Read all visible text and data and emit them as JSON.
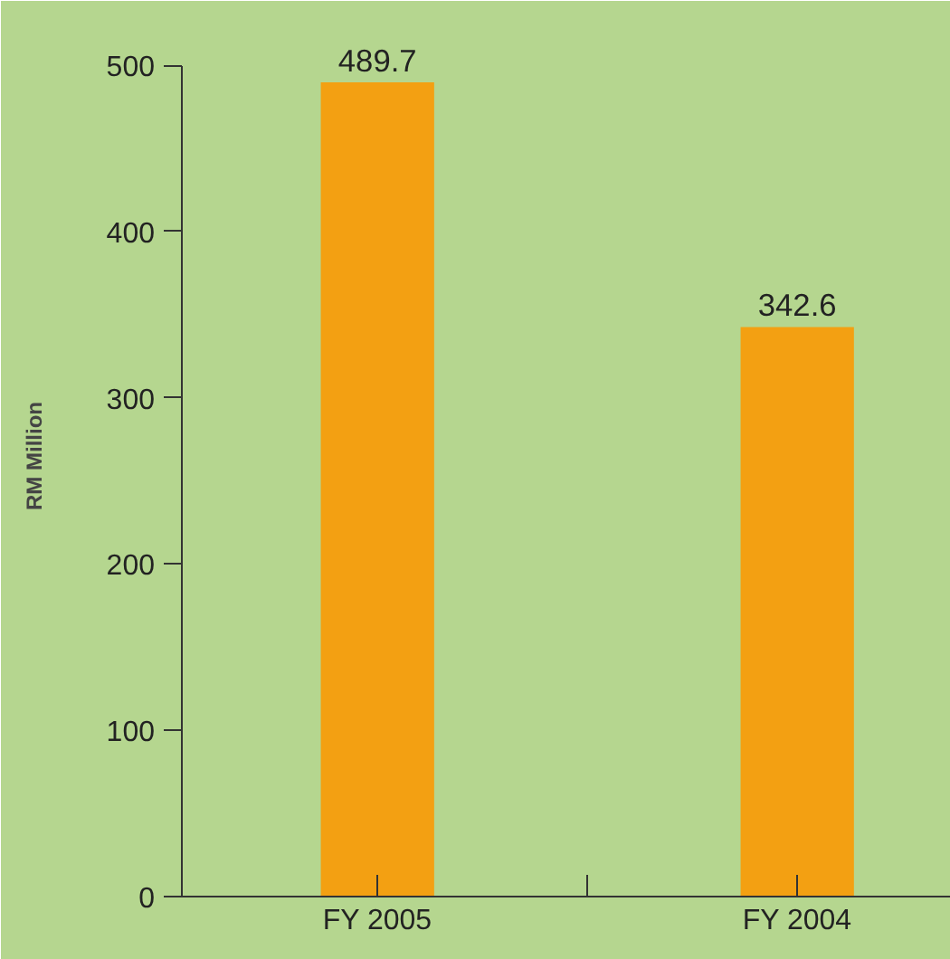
{
  "chart_data": {
    "type": "bar",
    "ylabel": "RM Million",
    "categories": [
      "FY 2005",
      "FY 2004"
    ],
    "values": [
      489.7,
      342.6
    ],
    "color": "#f3a012",
    "ylim": [
      0,
      500
    ],
    "yticks": [
      0,
      100,
      200,
      300,
      400,
      500
    ],
    "grid": false,
    "data_labels": true
  }
}
